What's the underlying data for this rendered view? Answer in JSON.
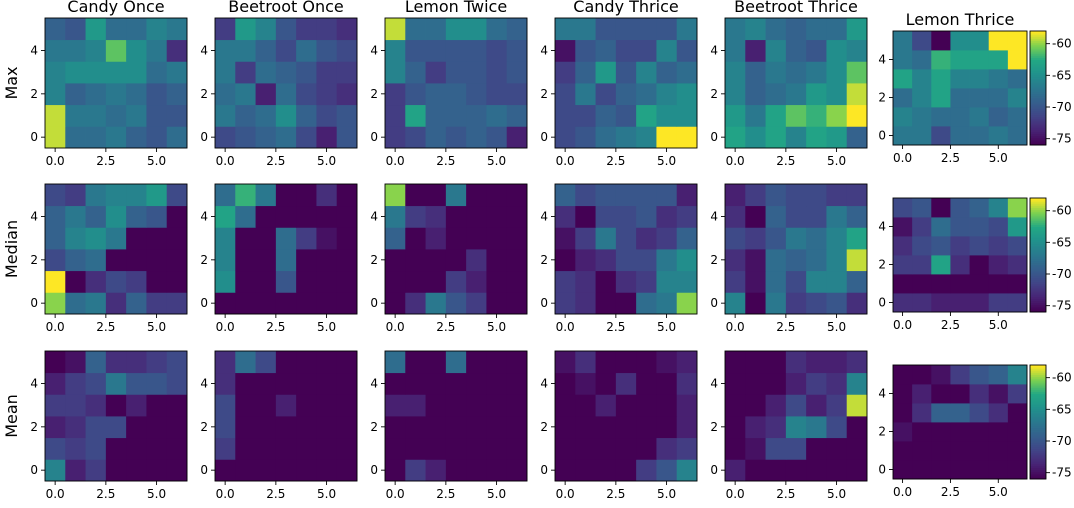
{
  "chart_data": {
    "type": "heatmap",
    "columns": [
      "Candy Once",
      "Beetroot Once",
      "Lemon Twice",
      "Candy Thrice",
      "Beetroot Thrice",
      "Lemon Thrice"
    ],
    "rows": [
      "Max",
      "Median",
      "Mean"
    ],
    "colormap": "viridis",
    "vmin": -76,
    "vmax": -58,
    "x_ticks": [
      "0.0",
      "2.5",
      "5.0"
    ],
    "x_tick_values": [
      0,
      2.5,
      5
    ],
    "y_ticks": [
      "0",
      "2",
      "4"
    ],
    "y_tick_values": [
      0,
      2,
      4
    ],
    "x_range": [
      -0.5,
      6.5
    ],
    "y_range": [
      -0.5,
      5.5
    ],
    "colorbar_ticks": [
      "-60",
      "-65",
      "-70",
      "-75"
    ],
    "colorbar_tick_values": [
      -60,
      -65,
      -70,
      -75
    ],
    "grids": [
      [
        [
          [
            -59,
            -68,
            -68,
            -67,
            -69,
            -70,
            -68
          ],
          [
            -59,
            -67,
            -67,
            -68,
            -67,
            -70,
            -70
          ],
          [
            -66,
            -69,
            -68,
            -67,
            -68,
            -70,
            -69
          ],
          [
            -66,
            -65,
            -65,
            -65,
            -65,
            -68,
            -67
          ],
          [
            -67,
            -67,
            -66,
            -61,
            -65,
            -67,
            -73
          ],
          [
            -69,
            -70,
            -64,
            -68,
            -68,
            -66,
            -67
          ]
        ],
        [
          [
            -71,
            -70,
            -69,
            -68,
            -71,
            -74,
            -70
          ],
          [
            -67,
            -69,
            -68,
            -65,
            -69,
            -71,
            -70
          ],
          [
            -68,
            -67,
            -74,
            -68,
            -71,
            -72,
            -73
          ],
          [
            -67,
            -72,
            -68,
            -69,
            -70,
            -72,
            -72
          ],
          [
            -67,
            -67,
            -69,
            -71,
            -68,
            -70,
            -71
          ],
          [
            -72,
            -64,
            -66,
            -70,
            -72,
            -72,
            -73
          ]
        ],
        [
          [
            -72,
            -71,
            -69,
            -70,
            -69,
            -70,
            -74
          ],
          [
            -72,
            -63,
            -69,
            -69,
            -69,
            -68,
            -69
          ],
          [
            -72,
            -70,
            -69,
            -69,
            -70,
            -71,
            -71
          ],
          [
            -66,
            -69,
            -72,
            -70,
            -70,
            -71,
            -70
          ],
          [
            -66,
            -70,
            -70,
            -70,
            -70,
            -71,
            -70
          ],
          [
            -59,
            -68,
            -68,
            -65,
            -65,
            -68,
            -69
          ]
        ],
        [
          [
            -71,
            -70,
            -68,
            -67,
            -66,
            -58,
            -58
          ],
          [
            -71,
            -71,
            -69,
            -70,
            -63,
            -65,
            -65
          ],
          [
            -71,
            -67,
            -71,
            -69,
            -68,
            -66,
            -65
          ],
          [
            -72,
            -69,
            -64,
            -70,
            -66,
            -69,
            -68
          ],
          [
            -75,
            -70,
            -69,
            -71,
            -71,
            -66,
            -70
          ],
          [
            -67,
            -67,
            -70,
            -70,
            -70,
            -70,
            -67
          ]
        ],
        [
          [
            -63,
            -65,
            -63,
            -66,
            -63,
            -64,
            -69
          ],
          [
            -64,
            -67,
            -63,
            -61,
            -62,
            -60,
            -58
          ],
          [
            -66,
            -69,
            -68,
            -67,
            -64,
            -65,
            -59
          ],
          [
            -66,
            -69,
            -67,
            -68,
            -67,
            -65,
            -61
          ],
          [
            -67,
            -74,
            -66,
            -69,
            -70,
            -65,
            -66
          ],
          [
            -67,
            -66,
            -68,
            -69,
            -68,
            -68,
            -64
          ]
        ],
        [
          [
            -67,
            -67,
            -71,
            -68,
            -68,
            -67,
            -68
          ],
          [
            -66,
            -67,
            -68,
            -68,
            -67,
            -69,
            -68
          ],
          [
            -68,
            -66,
            -63,
            -68,
            -68,
            -68,
            -66
          ],
          [
            -63,
            -66,
            -63,
            -66,
            -66,
            -67,
            -68
          ],
          [
            -67,
            -68,
            -62,
            -63,
            -63,
            -63,
            -58
          ],
          [
            -67,
            -71,
            -76,
            -65,
            -65,
            -58,
            -58
          ]
        ]
      ],
      [
        [
          [
            -60,
            -68,
            -67,
            -73,
            -69,
            -72,
            -72
          ],
          [
            -58,
            -76,
            -73,
            -71,
            -72,
            -76,
            -76
          ],
          [
            -71,
            -69,
            -68,
            -76,
            -76,
            -76,
            -76
          ],
          [
            -69,
            -66,
            -65,
            -67,
            -76,
            -76,
            -76
          ],
          [
            -69,
            -67,
            -69,
            -65,
            -69,
            -70,
            -76
          ],
          [
            -71,
            -72,
            -67,
            -66,
            -66,
            -64,
            -71
          ]
        ],
        [
          [
            -76,
            -76,
            -76,
            -76,
            -76,
            -76,
            -76
          ],
          [
            -65,
            -76,
            -76,
            -70,
            -76,
            -76,
            -76
          ],
          [
            -66,
            -76,
            -76,
            -68,
            -76,
            -76,
            -76
          ],
          [
            -66,
            -76,
            -76,
            -68,
            -72,
            -75,
            -76
          ],
          [
            -63,
            -68,
            -76,
            -76,
            -76,
            -76,
            -76
          ],
          [
            -68,
            -62,
            -67,
            -76,
            -76,
            -73,
            -76
          ]
        ],
        [
          [
            -76,
            -73,
            -67,
            -70,
            -72,
            -76,
            -76
          ],
          [
            -76,
            -76,
            -76,
            -72,
            -74,
            -76,
            -76
          ],
          [
            -76,
            -76,
            -76,
            -76,
            -73,
            -76,
            -76
          ],
          [
            -69,
            -76,
            -74,
            -76,
            -76,
            -76,
            -76
          ],
          [
            -67,
            -72,
            -73,
            -76,
            -76,
            -76,
            -76
          ],
          [
            -60,
            -76,
            -76,
            -67,
            -76,
            -76,
            -76
          ]
        ],
        [
          [
            -72,
            -73,
            -76,
            -76,
            -68,
            -67,
            -60
          ],
          [
            -72,
            -73,
            -76,
            -73,
            -72,
            -66,
            -66
          ],
          [
            -76,
            -74,
            -73,
            -71,
            -71,
            -67,
            -65
          ],
          [
            -75,
            -72,
            -67,
            -71,
            -73,
            -72,
            -69
          ],
          [
            -73,
            -76,
            -71,
            -71,
            -70,
            -73,
            -72
          ],
          [
            -69,
            -71,
            -70,
            -70,
            -70,
            -70,
            -74
          ]
        ],
        [
          [
            -66,
            -76,
            -67,
            -72,
            -71,
            -70,
            -73
          ],
          [
            -72,
            -75,
            -68,
            -71,
            -66,
            -66,
            -69
          ],
          [
            -73,
            -75,
            -68,
            -69,
            -68,
            -66,
            -59
          ],
          [
            -71,
            -72,
            -70,
            -67,
            -68,
            -66,
            -63
          ],
          [
            -73,
            -76,
            -69,
            -71,
            -71,
            -67,
            -69
          ],
          [
            -74,
            -72,
            -70,
            -71,
            -71,
            -72,
            -72
          ]
        ],
        [
          [
            -73,
            -73,
            -74,
            -74,
            -74,
            -72,
            -72
          ],
          [
            -76,
            -76,
            -76,
            -76,
            -76,
            -76,
            -76
          ],
          [
            -72,
            -72,
            -63,
            -73,
            -76,
            -74,
            -73
          ],
          [
            -73,
            -71,
            -70,
            -72,
            -71,
            -72,
            -71
          ],
          [
            -75,
            -72,
            -68,
            -70,
            -70,
            -71,
            -64
          ],
          [
            -71,
            -70,
            -76,
            -70,
            -69,
            -66,
            -60
          ]
        ]
      ],
      [
        [
          [
            -66,
            -74,
            -72,
            -76,
            -76,
            -76,
            -76
          ],
          [
            -71,
            -72,
            -71,
            -76,
            -76,
            -76,
            -76
          ],
          [
            -74,
            -73,
            -71,
            -71,
            -76,
            -76,
            -76
          ],
          [
            -72,
            -72,
            -73,
            -76,
            -74,
            -76,
            -76
          ],
          [
            -74,
            -72,
            -71,
            -67,
            -70,
            -70,
            -71
          ],
          [
            -76,
            -75,
            -69,
            -73,
            -73,
            -72,
            -71
          ]
        ],
        [
          [
            -76,
            -76,
            -76,
            -76,
            -76,
            -76,
            -76
          ],
          [
            -72,
            -76,
            -76,
            -76,
            -76,
            -76,
            -76
          ],
          [
            -71,
            -76,
            -76,
            -76,
            -76,
            -76,
            -76
          ],
          [
            -71,
            -76,
            -76,
            -74,
            -76,
            -76,
            -76
          ],
          [
            -73,
            -76,
            -76,
            -76,
            -76,
            -76,
            -76
          ],
          [
            -73,
            -68,
            -71,
            -76,
            -76,
            -76,
            -76
          ]
        ],
        [
          [
            -76,
            -72,
            -74,
            -76,
            -76,
            -76,
            -76
          ],
          [
            -76,
            -76,
            -76,
            -76,
            -76,
            -76,
            -76
          ],
          [
            -76,
            -76,
            -76,
            -76,
            -76,
            -76,
            -76
          ],
          [
            -74,
            -74,
            -76,
            -76,
            -76,
            -76,
            -76
          ],
          [
            -76,
            -76,
            -76,
            -76,
            -76,
            -76,
            -76
          ],
          [
            -68,
            -76,
            -76,
            -68,
            -76,
            -76,
            -76
          ]
        ],
        [
          [
            -76,
            -76,
            -76,
            -76,
            -72,
            -70,
            -66
          ],
          [
            -76,
            -76,
            -76,
            -76,
            -76,
            -73,
            -72
          ],
          [
            -76,
            -76,
            -76,
            -76,
            -76,
            -76,
            -74
          ],
          [
            -76,
            -76,
            -74,
            -76,
            -76,
            -76,
            -74
          ],
          [
            -76,
            -75,
            -76,
            -73,
            -76,
            -76,
            -73
          ],
          [
            -75,
            -73,
            -76,
            -76,
            -76,
            -75,
            -74
          ]
        ],
        [
          [
            -74,
            -76,
            -76,
            -76,
            -76,
            -76,
            -76
          ],
          [
            -76,
            -75,
            -71,
            -71,
            -76,
            -76,
            -76
          ],
          [
            -76,
            -74,
            -73,
            -66,
            -67,
            -71,
            -76
          ],
          [
            -76,
            -76,
            -74,
            -71,
            -74,
            -72,
            -59
          ],
          [
            -76,
            -76,
            -76,
            -74,
            -72,
            -73,
            -66
          ],
          [
            -76,
            -76,
            -76,
            -73,
            -74,
            -74,
            -73
          ]
        ],
        [
          [
            -76,
            -76,
            -76,
            -76,
            -76,
            -76,
            -76
          ],
          [
            -76,
            -76,
            -76,
            -76,
            -76,
            -76,
            -76
          ],
          [
            -75,
            -76,
            -76,
            -76,
            -76,
            -76,
            -76
          ],
          [
            -76,
            -73,
            -69,
            -69,
            -71,
            -73,
            -76
          ],
          [
            -76,
            -74,
            -76,
            -76,
            -73,
            -75,
            -72
          ],
          [
            -76,
            -76,
            -75,
            -72,
            -70,
            -69,
            -66
          ]
        ]
      ]
    ]
  }
}
